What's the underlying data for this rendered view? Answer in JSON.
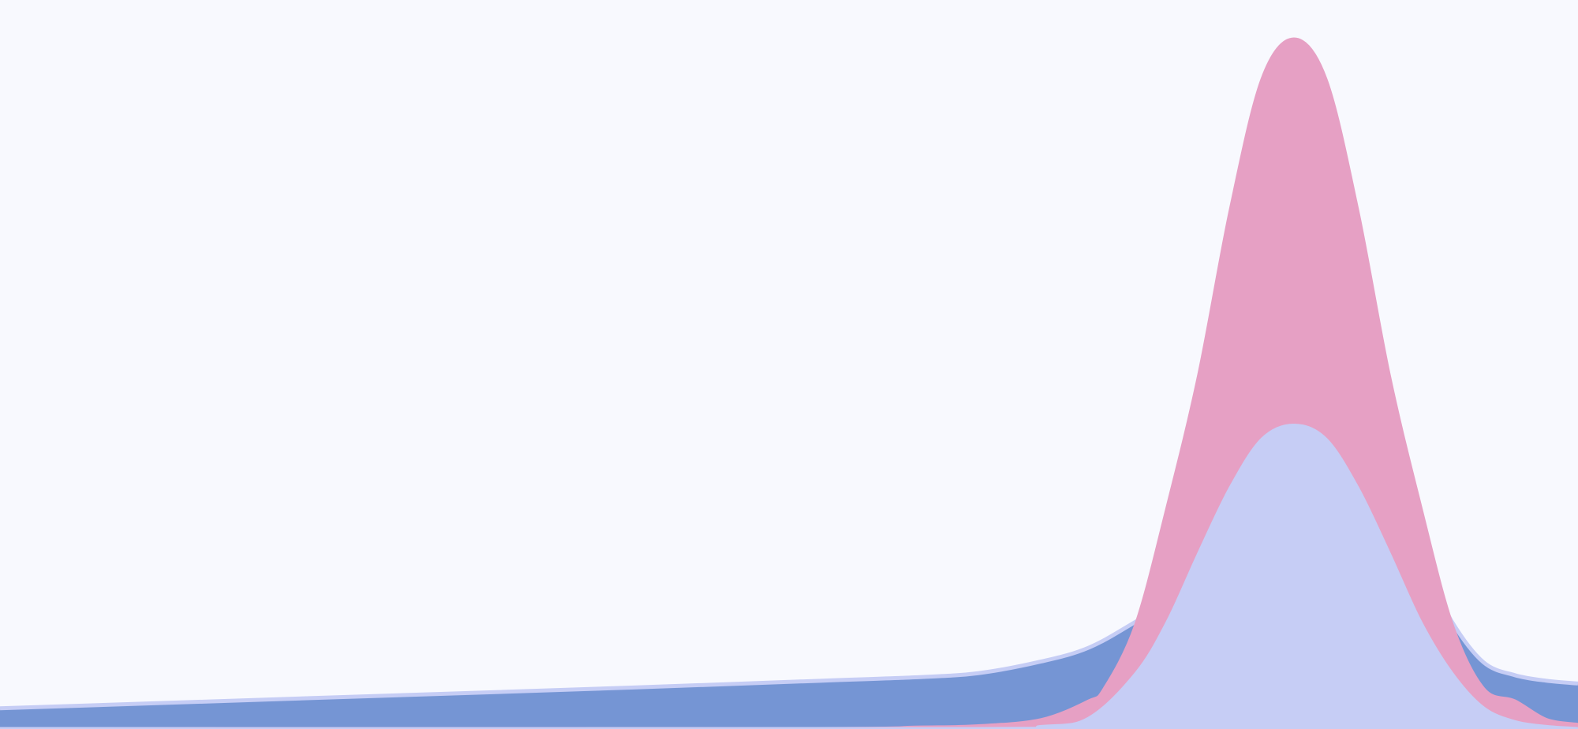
{
  "chart_data": {
    "type": "area",
    "x_range": [
      0,
      1
    ],
    "y_range": [
      0,
      1
    ],
    "grid": false,
    "legend": "none",
    "series": [
      {
        "color": "#7595d4",
        "outline": "#c6cdf5",
        "x": [
          0.0,
          0.2,
          0.4,
          0.52,
          0.58,
          0.62,
          0.66,
          0.69,
          0.72,
          0.76,
          0.78,
          0.8,
          0.82,
          0.84,
          0.86,
          0.88,
          0.9,
          0.92,
          0.94,
          0.96,
          0.98,
          1.0
        ],
        "y": [
          0.03,
          0.045,
          0.06,
          0.07,
          0.075,
          0.081,
          0.098,
          0.118,
          0.156,
          0.212,
          0.246,
          0.28,
          0.3,
          0.305,
          0.3,
          0.28,
          0.246,
          0.156,
          0.097,
          0.078,
          0.07,
          0.066
        ]
      },
      {
        "color": "#e6a0c4",
        "outline": "#e6a0c4",
        "x": [
          0.0,
          0.5,
          0.58,
          0.62,
          0.66,
          0.69,
          0.7,
          0.72,
          0.74,
          0.76,
          0.78,
          0.8,
          0.82,
          0.84,
          0.86,
          0.88,
          0.9,
          0.92,
          0.94,
          0.96,
          0.98,
          1.0
        ],
        "y": [
          0.0,
          0.0,
          0.002,
          0.004,
          0.013,
          0.04,
          0.058,
          0.151,
          0.322,
          0.514,
          0.753,
          0.942,
          1.0,
          0.942,
          0.753,
          0.514,
          0.322,
          0.151,
          0.058,
          0.04,
          0.013,
          0.006
        ]
      },
      {
        "color": "#c6cdf5",
        "outline": "#c6cdf5",
        "x": [
          0.0,
          0.6,
          0.66,
          0.69,
          0.72,
          0.74,
          0.76,
          0.78,
          0.8,
          0.82,
          0.84,
          0.86,
          0.88,
          0.9,
          0.92,
          0.94,
          0.96,
          0.98,
          1.0
        ],
        "y": [
          0.0,
          0.0,
          0.003,
          0.015,
          0.08,
          0.155,
          0.255,
          0.35,
          0.42,
          0.44,
          0.42,
          0.35,
          0.255,
          0.155,
          0.08,
          0.03,
          0.01,
          0.003,
          0.0
        ]
      }
    ]
  }
}
